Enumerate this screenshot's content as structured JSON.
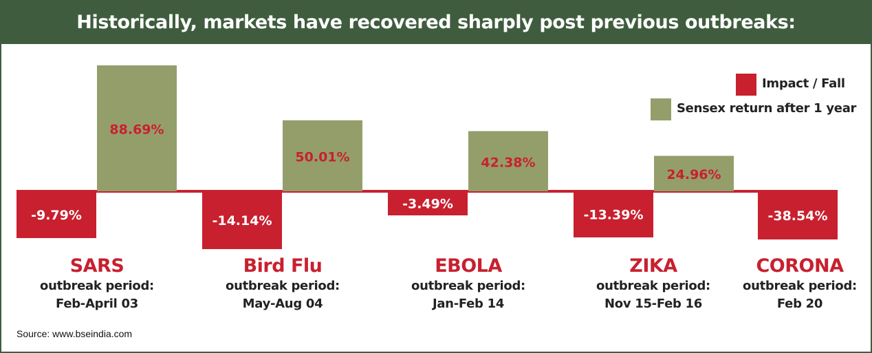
{
  "title": "Historically, markets have recovered sharply post previous outbreaks:",
  "source": "Source: www.bseindia.com",
  "colors": {
    "fall": "#c8202f",
    "return": "#949e6b",
    "header": "#3f5d3e",
    "category": "#c8202f"
  },
  "legend": [
    {
      "label": "Impact / Fall",
      "color": "#c8202f"
    },
    {
      "label": "Sensex return after 1 year",
      "color": "#949e6b"
    }
  ],
  "chart_data": {
    "type": "bar",
    "categories": [
      "SARS",
      "Bird Flu",
      "EBOLA",
      "ZIKA",
      "CORONA"
    ],
    "outbreak_period_label": "outbreak period:",
    "periods": [
      "Feb-April 03",
      "May-Aug 04",
      "Jan-Feb 14",
      "Nov 15-Feb 16",
      "Feb 20"
    ],
    "series": [
      {
        "name": "Impact / Fall",
        "values": [
          -9.79,
          -14.14,
          -3.49,
          -13.39,
          -38.54
        ],
        "labels": [
          "-9.79%",
          "-14.14%",
          "-3.49%",
          "-13.39%",
          "-38.54%"
        ]
      },
      {
        "name": "Sensex return after 1 year",
        "values": [
          88.69,
          50.01,
          42.38,
          24.96,
          null
        ],
        "labels": [
          "88.69%",
          "50.01%",
          "42.38%",
          "24.96%",
          null
        ]
      }
    ]
  }
}
